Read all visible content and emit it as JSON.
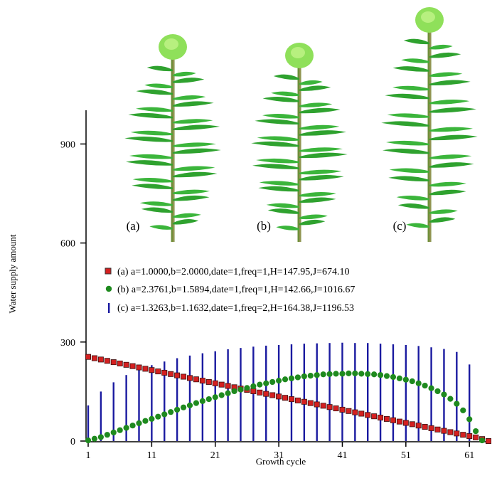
{
  "chart_data": {
    "type": "scatter",
    "xlabel": "Growth cycle",
    "ylabel": "Water supply amount",
    "xlim": [
      1,
      64
    ],
    "ylim": [
      0,
      1000
    ],
    "xticks": [
      "1",
      "11",
      "21",
      "31",
      "41",
      "51",
      "61"
    ],
    "yticks": [
      "0",
      "300",
      "600",
      "900"
    ],
    "plant_labels": [
      "(a)",
      "(b)",
      "(c)"
    ],
    "series": [
      {
        "name": "(a) a=1.0000,b=2.0000,date=1,freq=1,H=147.95,J=674.10",
        "marker": "square",
        "color": "#d42020",
        "x": [
          1,
          2,
          3,
          4,
          5,
          6,
          7,
          8,
          9,
          10,
          11,
          12,
          13,
          14,
          15,
          16,
          17,
          18,
          19,
          20,
          21,
          22,
          23,
          24,
          25,
          26,
          27,
          28,
          29,
          30,
          31,
          32,
          33,
          34,
          35,
          36,
          37,
          38,
          39,
          40,
          41,
          42,
          43,
          44,
          45,
          46,
          47,
          48,
          49,
          50,
          51,
          52,
          53,
          54,
          55,
          56,
          57,
          58,
          59,
          60,
          61,
          62,
          63,
          64
        ],
        "y": [
          255,
          251,
          247,
          243,
          239,
          235,
          231,
          227,
          223,
          219,
          215,
          211,
          207,
          203,
          199,
          195,
          191,
          187,
          183,
          179,
          175,
          171,
          167,
          163,
          159,
          155,
          151,
          147,
          143,
          139,
          135,
          131,
          127,
          123,
          119,
          115,
          111,
          107,
          103,
          99,
          95,
          91,
          87,
          83,
          79,
          75,
          71,
          67,
          63,
          59,
          55,
          51,
          47,
          43,
          39,
          35,
          31,
          27,
          23,
          19,
          15,
          11,
          6,
          0
        ]
      },
      {
        "name": "(b) a=2.3761,b=1.5894,date=1,freq=1,H=142.66,J=1016.67",
        "marker": "circle",
        "color": "#1e8a1e",
        "x": [
          1,
          2,
          3,
          4,
          5,
          6,
          7,
          8,
          9,
          10,
          11,
          12,
          13,
          14,
          15,
          16,
          17,
          18,
          19,
          20,
          21,
          22,
          23,
          24,
          25,
          26,
          27,
          28,
          29,
          30,
          31,
          32,
          33,
          34,
          35,
          36,
          37,
          38,
          39,
          40,
          41,
          42,
          43,
          44,
          45,
          46,
          47,
          48,
          49,
          50,
          51,
          52,
          53,
          54,
          55,
          56,
          57,
          58,
          59,
          60,
          61,
          62,
          63
        ],
        "y": [
          2,
          7,
          12,
          19,
          26,
          33,
          40,
          47,
          54,
          61,
          67,
          74,
          81,
          88,
          95,
          102,
          108,
          115,
          121,
          127,
          133,
          139,
          145,
          151,
          156,
          161,
          166,
          171,
          175,
          179,
          183,
          187,
          190,
          193,
          196,
          198,
          200,
          202,
          203,
          204,
          204,
          205,
          205,
          204,
          203,
          202,
          200,
          197,
          194,
          190,
          186,
          181,
          175,
          168,
          160,
          151,
          141,
          128,
          113,
          93,
          66,
          30,
          2
        ]
      },
      {
        "name": "(c) a=1.3263,b=1.1632,date=1,freq=2,H=164.38,J=1196.53",
        "marker": "bar",
        "color": "#1a1aa0",
        "x": [
          1,
          3,
          5,
          7,
          9,
          11,
          13,
          15,
          17,
          19,
          21,
          23,
          25,
          27,
          29,
          31,
          33,
          35,
          37,
          39,
          41,
          43,
          45,
          47,
          49,
          51,
          53,
          55,
          57,
          59,
          61
        ],
        "y": [
          108,
          150,
          178,
          200,
          217,
          230,
          241,
          251,
          259,
          266,
          272,
          278,
          282,
          286,
          289,
          291,
          293,
          295,
          296,
          297,
          298,
          297,
          297,
          295,
          293,
          291,
          288,
          284,
          279,
          270,
          232
        ]
      }
    ]
  }
}
